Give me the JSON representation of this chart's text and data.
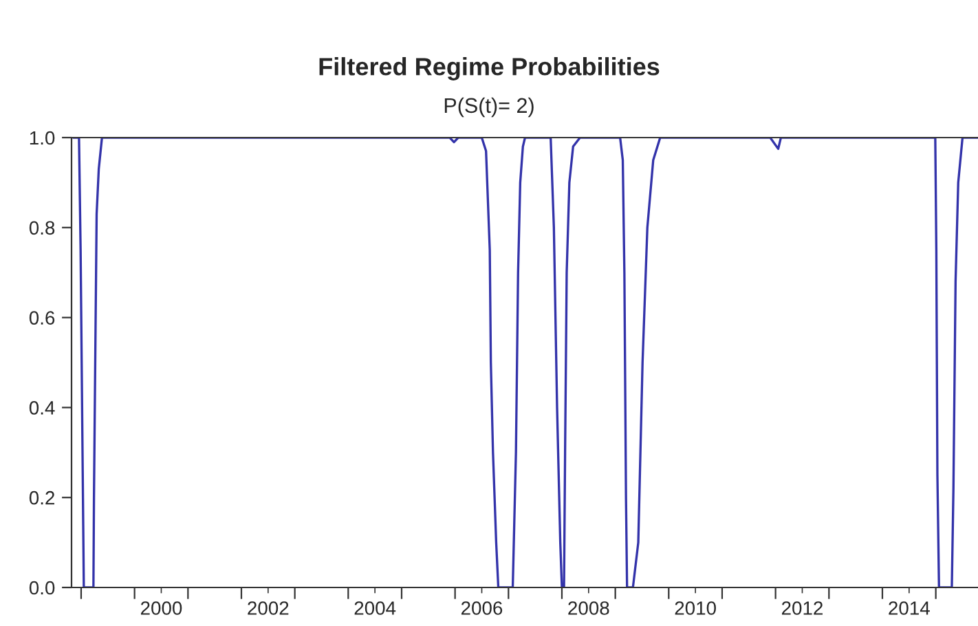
{
  "chart_data": {
    "type": "line",
    "title": "Filtered Regime Probabilities",
    "subtitle": "P(S(t)= 2)",
    "series": [
      {
        "color": "#3333aa",
        "x": [
          1998.85,
          1998.96,
          1998.99,
          1999.03,
          1999.05,
          1999.23,
          1999.24,
          1999.27,
          1999.29,
          1999.33,
          1999.39,
          2005.9,
          2005.98,
          2006.06,
          2006.5,
          2006.58,
          2006.65,
          2006.67,
          2006.71,
          2006.77,
          2006.81,
          2007.08,
          2007.14,
          2007.18,
          2007.22,
          2007.27,
          2007.31,
          2007.79,
          2007.85,
          2007.91,
          2007.97,
          2008.0,
          2008.04,
          2008.06,
          2008.09,
          2008.14,
          2008.21,
          2008.34,
          2009.09,
          2009.14,
          2009.17,
          2009.2,
          2009.22,
          2009.33,
          2009.43,
          2009.51,
          2009.6,
          2009.71,
          2009.84,
          2011.9,
          2012.05,
          2012.1,
          2014.99,
          2015.01,
          2015.03,
          2015.06,
          2015.3,
          2015.33,
          2015.37,
          2015.42,
          2015.5,
          2015.79
        ],
        "values": [
          1.0,
          1.0,
          0.75,
          0.25,
          0.0,
          0.0,
          0.2,
          0.58,
          0.83,
          0.93,
          1.0,
          1.0,
          0.99,
          1.0,
          1.0,
          0.97,
          0.75,
          0.5,
          0.3,
          0.1,
          0.0,
          0.0,
          0.3,
          0.7,
          0.9,
          0.98,
          1.0,
          1.0,
          0.8,
          0.4,
          0.1,
          0.0,
          0.0,
          0.3,
          0.7,
          0.9,
          0.98,
          1.0,
          1.0,
          0.95,
          0.7,
          0.2,
          0.0,
          0.0,
          0.1,
          0.5,
          0.8,
          0.95,
          1.0,
          1.0,
          0.975,
          1.0,
          1.0,
          0.75,
          0.25,
          0.0,
          0.0,
          0.22,
          0.68,
          0.9,
          1.0,
          1.0
        ]
      }
    ],
    "xlim": [
      1998.82,
      2015.79
    ],
    "xticks": [
      {
        "value": 1999,
        "label": null
      },
      {
        "value": 2000,
        "label": null
      },
      {
        "value": 2001,
        "label": null
      },
      {
        "value": 2002,
        "label": null
      },
      {
        "value": 2003,
        "label": null
      },
      {
        "value": 2004,
        "label": null
      },
      {
        "value": 2005,
        "label": null
      },
      {
        "value": 2006,
        "label": null
      },
      {
        "value": 2007,
        "label": null
      },
      {
        "value": 2008,
        "label": null
      },
      {
        "value": 2009,
        "label": null
      },
      {
        "value": 2010,
        "label": null
      },
      {
        "value": 2011,
        "label": null
      },
      {
        "value": 2012,
        "label": null
      },
      {
        "value": 2013,
        "label": null
      },
      {
        "value": 2014,
        "label": null
      },
      {
        "value": 2015,
        "label": null
      },
      {
        "value": 2000.5,
        "label": "2000"
      },
      {
        "value": 2002.5,
        "label": "2002"
      },
      {
        "value": 2004.5,
        "label": "2004"
      },
      {
        "value": 2006.5,
        "label": "2006"
      },
      {
        "value": 2008.5,
        "label": "2008"
      },
      {
        "value": 2010.5,
        "label": "2010"
      },
      {
        "value": 2012.5,
        "label": "2012"
      },
      {
        "value": 2014.5,
        "label": "2014"
      }
    ],
    "ylim": [
      0,
      1.0
    ],
    "yticks": [
      {
        "value": 0,
        "label": "0.0"
      },
      {
        "value": 0.2,
        "label": "0.2"
      },
      {
        "value": 0.4,
        "label": "0.4"
      },
      {
        "value": 0.6,
        "label": "0.6"
      },
      {
        "value": 0.8,
        "label": "0.8"
      },
      {
        "value": 1.0,
        "label": "1.0"
      }
    ],
    "grid": false,
    "marker": "none",
    "line_style": "solid"
  }
}
